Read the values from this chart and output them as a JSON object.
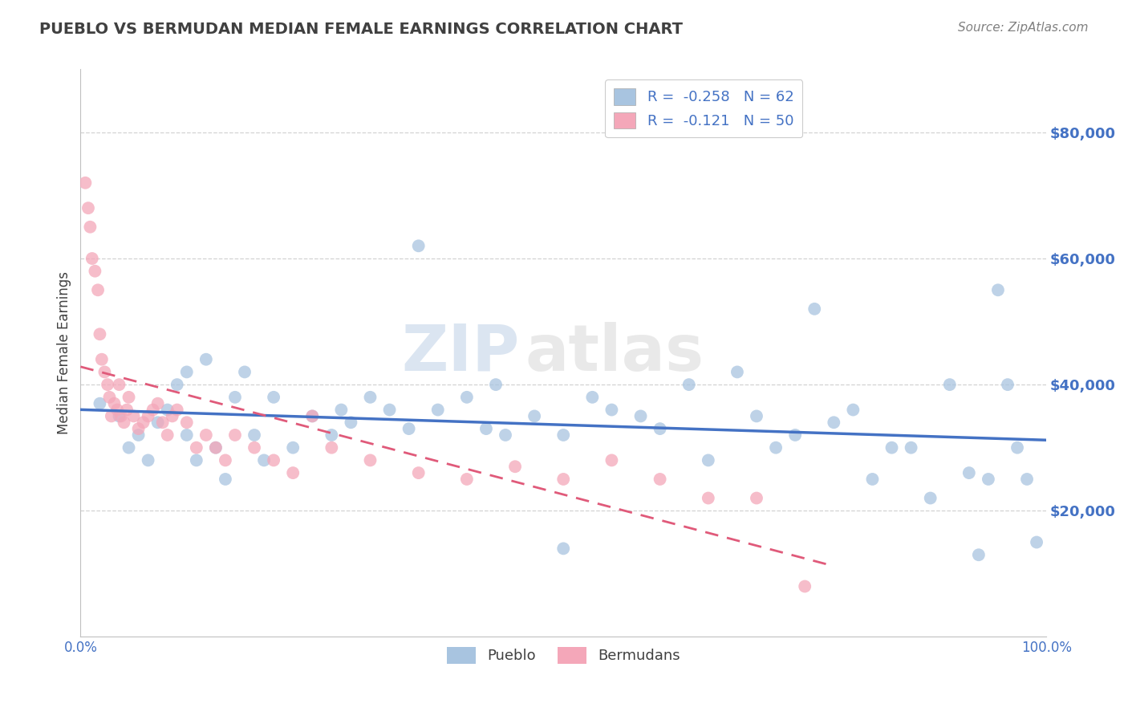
{
  "title": "PUEBLO VS BERMUDAN MEDIAN FEMALE EARNINGS CORRELATION CHART",
  "source": "Source: ZipAtlas.com",
  "ylabel": "Median Female Earnings",
  "watermark_zip": "ZIP",
  "watermark_atlas": "atlas",
  "xlim": [
    0.0,
    1.0
  ],
  "ylim": [
    0,
    90000
  ],
  "yticks": [
    20000,
    40000,
    60000,
    80000
  ],
  "ytick_labels": [
    "$20,000",
    "$40,000",
    "$60,000",
    "$80,000"
  ],
  "xticks": [
    0.0,
    1.0
  ],
  "xtick_labels": [
    "0.0%",
    "100.0%"
  ],
  "pueblo_color": "#a8c4e0",
  "pueblo_line_color": "#4472c4",
  "bermudan_color": "#f4a7b9",
  "bermudan_line_color": "#e05a7a",
  "pueblo_R": -0.258,
  "pueblo_N": 62,
  "bermudan_R": -0.121,
  "bermudan_N": 50,
  "title_color": "#404040",
  "source_color": "#808080",
  "axis_label_color": "#404040",
  "tick_label_color": "#4472c4",
  "grid_color": "#c8c8c8",
  "background_color": "#ffffff",
  "pueblo_x": [
    0.02,
    0.04,
    0.05,
    0.06,
    0.07,
    0.08,
    0.09,
    0.1,
    0.11,
    0.12,
    0.13,
    0.14,
    0.15,
    0.16,
    0.17,
    0.18,
    0.2,
    0.22,
    0.24,
    0.26,
    0.28,
    0.3,
    0.32,
    0.34,
    0.37,
    0.4,
    0.42,
    0.44,
    0.47,
    0.5,
    0.53,
    0.55,
    0.58,
    0.6,
    0.63,
    0.65,
    0.68,
    0.7,
    0.72,
    0.74,
    0.76,
    0.78,
    0.8,
    0.82,
    0.84,
    0.86,
    0.88,
    0.9,
    0.92,
    0.94,
    0.95,
    0.96,
    0.97,
    0.98,
    0.99,
    0.5,
    0.43,
    0.35,
    0.27,
    0.19,
    0.11,
    0.93
  ],
  "pueblo_y": [
    37000,
    35000,
    30000,
    32000,
    28000,
    34000,
    36000,
    40000,
    32000,
    28000,
    44000,
    30000,
    25000,
    38000,
    42000,
    32000,
    38000,
    30000,
    35000,
    32000,
    34000,
    38000,
    36000,
    33000,
    36000,
    38000,
    33000,
    32000,
    35000,
    32000,
    38000,
    36000,
    35000,
    33000,
    40000,
    28000,
    42000,
    35000,
    30000,
    32000,
    52000,
    34000,
    36000,
    25000,
    30000,
    30000,
    22000,
    40000,
    26000,
    25000,
    55000,
    40000,
    30000,
    25000,
    15000,
    14000,
    40000,
    62000,
    36000,
    28000,
    42000,
    13000
  ],
  "bermudan_x": [
    0.005,
    0.008,
    0.01,
    0.012,
    0.015,
    0.018,
    0.02,
    0.022,
    0.025,
    0.028,
    0.03,
    0.032,
    0.035,
    0.038,
    0.04,
    0.042,
    0.045,
    0.048,
    0.05,
    0.055,
    0.06,
    0.065,
    0.07,
    0.075,
    0.08,
    0.085,
    0.09,
    0.095,
    0.1,
    0.11,
    0.12,
    0.13,
    0.14,
    0.15,
    0.16,
    0.18,
    0.2,
    0.22,
    0.24,
    0.26,
    0.3,
    0.35,
    0.4,
    0.45,
    0.5,
    0.55,
    0.6,
    0.65,
    0.7,
    0.75
  ],
  "bermudan_y": [
    72000,
    68000,
    65000,
    60000,
    58000,
    55000,
    48000,
    44000,
    42000,
    40000,
    38000,
    35000,
    37000,
    36000,
    40000,
    35000,
    34000,
    36000,
    38000,
    35000,
    33000,
    34000,
    35000,
    36000,
    37000,
    34000,
    32000,
    35000,
    36000,
    34000,
    30000,
    32000,
    30000,
    28000,
    32000,
    30000,
    28000,
    26000,
    35000,
    30000,
    28000,
    26000,
    25000,
    27000,
    25000,
    28000,
    25000,
    22000,
    22000,
    8000
  ]
}
